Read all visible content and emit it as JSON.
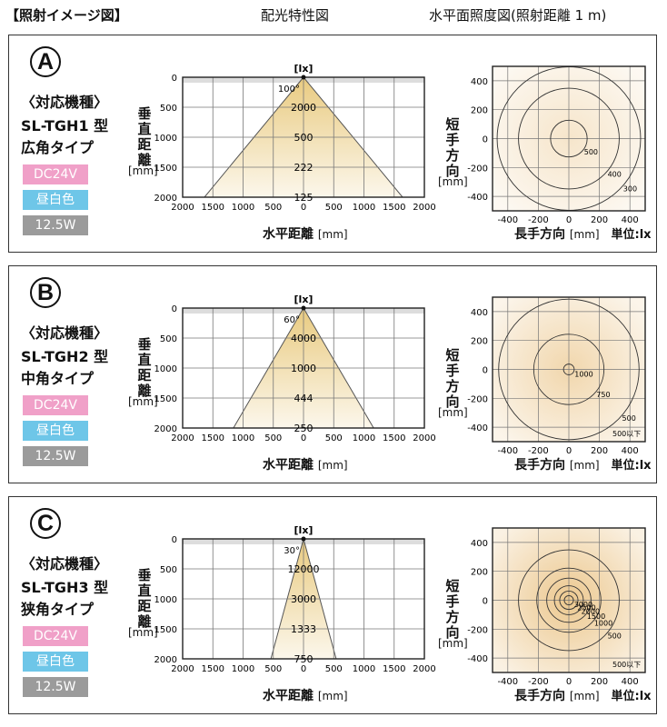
{
  "header": {
    "title": "【照射イメージ図】",
    "center": "配光特性図",
    "right": "水平面照度図(照射距離 1 m)"
  },
  "labels": {
    "lux_unit": "[lx]",
    "vertical_axis": [
      "垂",
      "直",
      "距",
      "離"
    ],
    "vertical_unit": "[mm]",
    "horizontal_axis": "水平距離",
    "horizontal_unit": "[mm]",
    "short_axis": [
      "短",
      "手",
      "方",
      "向"
    ],
    "short_unit": "[mm]",
    "long_axis": "長手方向",
    "long_unit": "[mm]",
    "unit_label": "単位:lx",
    "model_heading": "〈対応機種〉"
  },
  "colors": {
    "dc": "#f0a0c8",
    "color_temp": "#6ec6e8",
    "wattage": "#9b9b9b",
    "beam": "#e8c87a",
    "map": "#e6b66a"
  },
  "panels": [
    {
      "letter": "A",
      "model": "SL-TGH1 型",
      "type": "広角タイプ",
      "voltage": "DC24V",
      "color_temp": "昼白色",
      "wattage": "12.5W"
    },
    {
      "letter": "B",
      "model": "SL-TGH2 型",
      "type": "中角タイプ",
      "voltage": "DC24V",
      "color_temp": "昼白色",
      "wattage": "12.5W"
    },
    {
      "letter": "C",
      "model": "SL-TGH3 型",
      "type": "狭角タイプ",
      "voltage": "DC24V",
      "color_temp": "昼白色",
      "wattage": "12.5W"
    }
  ],
  "chart_data": [
    {
      "type": "area",
      "panel": "A",
      "beam_angle_label": "100°",
      "x": [
        -2000,
        -1500,
        -1000,
        -500,
        0,
        500,
        1000,
        1500,
        2000
      ],
      "y_ticks": [
        0,
        500,
        1000,
        1500,
        2000
      ],
      "xlim": [
        -2000,
        2000
      ],
      "ylim": [
        0,
        2000
      ],
      "beam_half_width_at_2000": 1640,
      "lux_points": [
        {
          "distance": 500,
          "lux": "2000"
        },
        {
          "distance": 1000,
          "lux": "500"
        },
        {
          "distance": 1500,
          "lux": "222"
        },
        {
          "distance": 2000,
          "lux": "125"
        }
      ]
    },
    {
      "type": "heatmap",
      "panel": "A",
      "ticks_x": [
        -400,
        -200,
        0,
        200,
        400
      ],
      "ticks_y": [
        400,
        200,
        0,
        -200,
        -400
      ],
      "contours": [
        {
          "label": "500",
          "radius": 120
        },
        {
          "label": "400",
          "radius": 330
        },
        {
          "label": "300",
          "radius": 470
        }
      ]
    },
    {
      "type": "area",
      "panel": "B",
      "beam_angle_label": "60°",
      "x": [
        -2000,
        -1500,
        -1000,
        -500,
        0,
        500,
        1000,
        1500,
        2000
      ],
      "y_ticks": [
        0,
        500,
        1000,
        1500,
        2000
      ],
      "xlim": [
        -2000,
        2000
      ],
      "ylim": [
        0,
        2000
      ],
      "beam_half_width_at_2000": 1160,
      "lux_points": [
        {
          "distance": 500,
          "lux": "4000"
        },
        {
          "distance": 1000,
          "lux": "1000"
        },
        {
          "distance": 1500,
          "lux": "444"
        },
        {
          "distance": 2000,
          "lux": "250"
        }
      ]
    },
    {
      "type": "heatmap",
      "panel": "B",
      "ticks_x": [
        -400,
        -200,
        0,
        200,
        400
      ],
      "ticks_y": [
        400,
        200,
        0,
        -200,
        -400
      ],
      "contours": [
        {
          "label": "1000",
          "radius": 35
        },
        {
          "label": "750",
          "radius": 230
        },
        {
          "label": "500",
          "radius": 460
        },
        {
          "label": "500以下",
          "radius": 0
        }
      ]
    },
    {
      "type": "area",
      "panel": "C",
      "beam_angle_label": "30°",
      "x": [
        -2000,
        -1500,
        -1000,
        -500,
        0,
        500,
        1000,
        1500,
        2000
      ],
      "y_ticks": [
        0,
        500,
        1000,
        1500,
        2000
      ],
      "xlim": [
        -2000,
        2000
      ],
      "ylim": [
        0,
        2000
      ],
      "beam_half_width_at_2000": 540,
      "lux_points": [
        {
          "distance": 500,
          "lux": "12000"
        },
        {
          "distance": 1000,
          "lux": "3000"
        },
        {
          "distance": 1500,
          "lux": "1333"
        },
        {
          "distance": 2000,
          "lux": "750"
        }
      ]
    },
    {
      "type": "heatmap",
      "panel": "C",
      "ticks_x": [
        -400,
        -200,
        0,
        200,
        400
      ],
      "ticks_y": [
        400,
        200,
        0,
        -200,
        -400
      ],
      "contours": [
        {
          "label": "3000",
          "radius": 30
        },
        {
          "label": "2500",
          "radius": 60
        },
        {
          "label": "2000",
          "radius": 95
        },
        {
          "label": "1500",
          "radius": 145
        },
        {
          "label": "1000",
          "radius": 210
        },
        {
          "label": "500",
          "radius": 330
        },
        {
          "label": "500以下",
          "radius": 0
        }
      ]
    }
  ]
}
